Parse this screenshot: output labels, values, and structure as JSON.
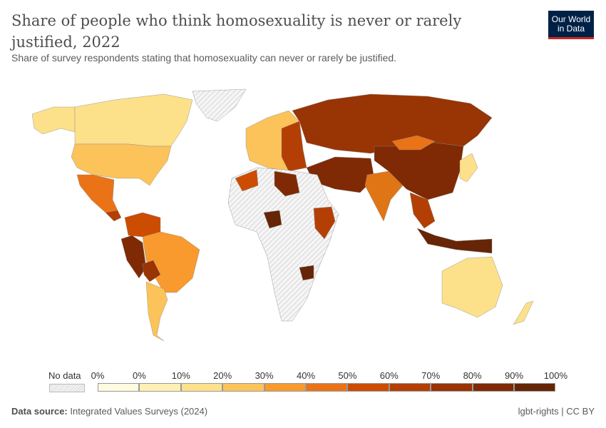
{
  "header": {
    "title": "Share of people who think homosexuality is never or rarely justified, 2022",
    "subtitle": "Share of survey respondents stating that homosexuality can never or rarely be justified."
  },
  "logo": {
    "text": "Our World in Data",
    "colors": {
      "background": "#002147",
      "accent": "#ce261e"
    }
  },
  "legend": {
    "no_data_label": "No data",
    "ticks": [
      "0%",
      "0%",
      "10%",
      "20%",
      "30%",
      "40%",
      "50%",
      "60%",
      "70%",
      "80%",
      "90%",
      "100%"
    ],
    "colors": [
      "#fffbe0",
      "#fff1b3",
      "#fde08a",
      "#fbc35a",
      "#f89a2e",
      "#ea7317",
      "#cc4c02",
      "#b43f04",
      "#993404",
      "#7f2a04",
      "#662506"
    ]
  },
  "footer": {
    "source_label": "Data source:",
    "source": "Integrated Values Surveys (2024)",
    "license": "lgbt-rights | CC BY"
  }
}
